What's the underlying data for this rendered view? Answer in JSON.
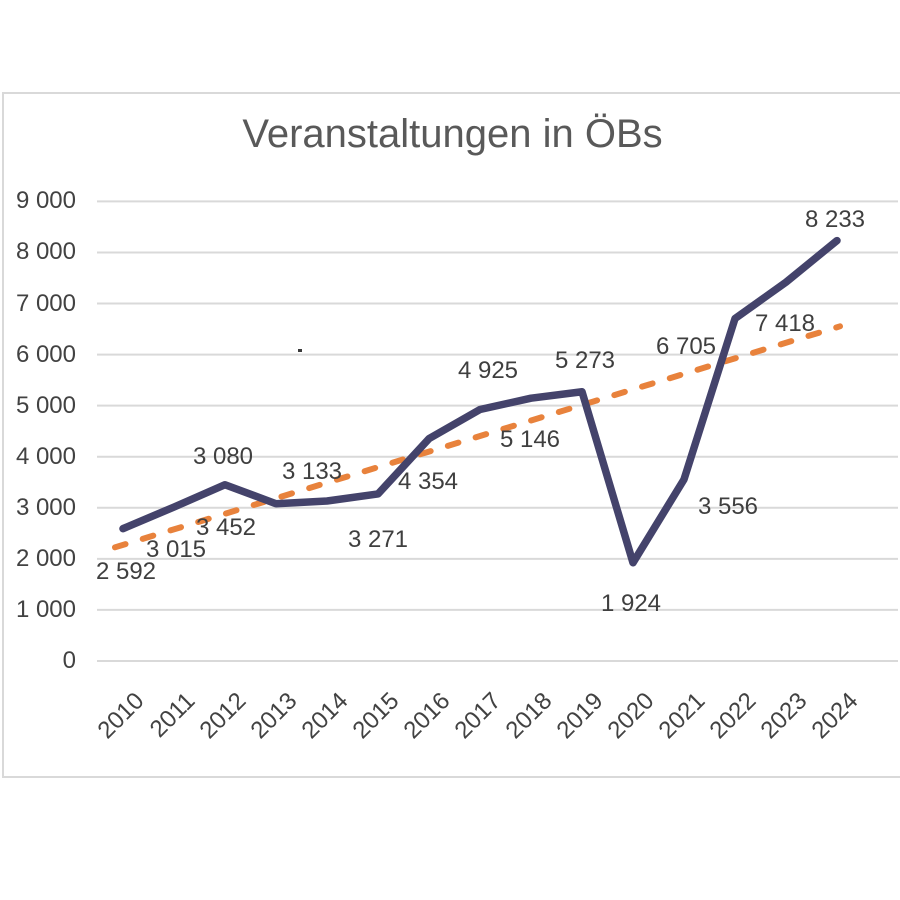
{
  "title": "Veranstaltungen in ÖBs",
  "colors": {
    "series_line": "#44436B",
    "trend_line": "#E8823C",
    "gridline": "#D9D9D9",
    "frame_border": "#D9D9D9",
    "title_text": "#595959",
    "axis_text": "#424242",
    "data_label_text": "#3F3F3F"
  },
  "chart_data": {
    "type": "line",
    "title": "Veranstaltungen in ÖBs",
    "categories": [
      "2010",
      "2011",
      "2012",
      "2013",
      "2014",
      "2015",
      "2016",
      "2017",
      "2018",
      "2019",
      "2020",
      "2021",
      "2022",
      "2023",
      "2024"
    ],
    "series": [
      {
        "name": "Veranstaltungen in ÖBs",
        "values": [
          2592,
          3015,
          3452,
          3080,
          3133,
          3271,
          4354,
          4925,
          5146,
          5273,
          1924,
          3556,
          6705,
          7418,
          8233
        ],
        "data_labels_visible": true
      }
    ],
    "trendline": {
      "type": "linear",
      "style": "dashed",
      "start_value": 2274,
      "end_value": 6536
    },
    "ylabel": "",
    "xlabel": "",
    "ylim": [
      0,
      9000
    ],
    "ytick_step": 1000,
    "yticks": [
      0,
      1000,
      2000,
      3000,
      4000,
      5000,
      6000,
      7000,
      8000,
      9000
    ],
    "grid": "horizontal",
    "legend": "none",
    "number_format": "thousands separated by space",
    "x_tick_label_rotation_deg": 45
  }
}
